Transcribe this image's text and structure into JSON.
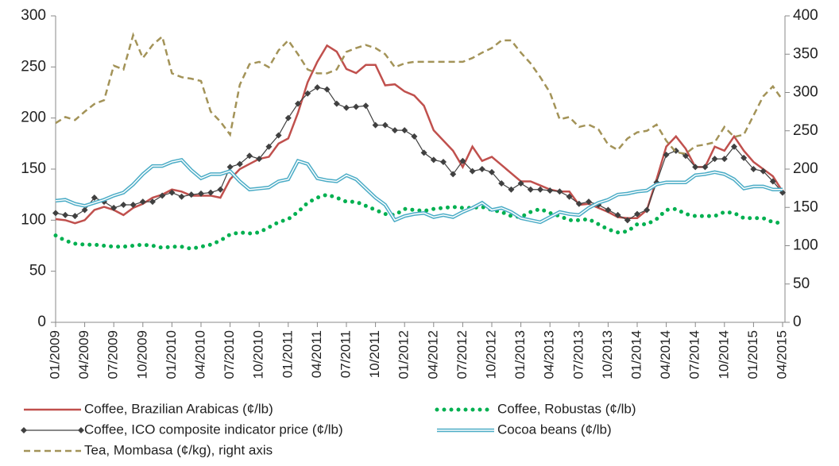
{
  "chart_data": {
    "type": "line",
    "categories": [
      "01/2009",
      null,
      null,
      "04/2009",
      null,
      null,
      "07/2009",
      null,
      null,
      "10/2009",
      null,
      null,
      "01/2010",
      null,
      null,
      "04/2010",
      null,
      null,
      "07/2010",
      null,
      null,
      "10/2010",
      null,
      null,
      "01/2011",
      null,
      null,
      "04/2011",
      null,
      null,
      "07/2011",
      null,
      null,
      "10/2011",
      null,
      null,
      "01/2012",
      null,
      null,
      "04/2012",
      null,
      null,
      "07/2012",
      null,
      null,
      "10/2012",
      null,
      null,
      "01/2013",
      null,
      null,
      "04/2013",
      null,
      null,
      "07/2013",
      null,
      null,
      "10/2013",
      null,
      null,
      "01/2014",
      null,
      null,
      "04/2014",
      null,
      null,
      "07/2014",
      null,
      null,
      "10/2014",
      null,
      null,
      "01/2015",
      null,
      null,
      "04/2015"
    ],
    "ylim": [
      0,
      300
    ],
    "yticks": [
      0,
      50,
      100,
      150,
      200,
      250,
      300
    ],
    "y2lim": [
      0,
      400
    ],
    "y2ticks": [
      0,
      50,
      100,
      150,
      200,
      250,
      300,
      350,
      400
    ],
    "series": [
      {
        "name": "Coffee, Brazilian Arabicas (¢/lb)",
        "color": "#c0504d",
        "style": "solid",
        "values": [
          101,
          100,
          97,
          100,
          110,
          113,
          110,
          105,
          112,
          116,
          122,
          125,
          130,
          128,
          124,
          124,
          124,
          122,
          140,
          150,
          155,
          160,
          162,
          175,
          180,
          205,
          235,
          255,
          271,
          265,
          248,
          244,
          252,
          252,
          232,
          233,
          226,
          222,
          212,
          188,
          178,
          168,
          152,
          172,
          158,
          162,
          154,
          146,
          138,
          138,
          134,
          130,
          128,
          128,
          115,
          116,
          112,
          108,
          103,
          102,
          102,
          110,
          140,
          172,
          182,
          170,
          152,
          152,
          172,
          168,
          182,
          168,
          157,
          150,
          143,
          128
        ]
      },
      {
        "name": "Coffee, Robustas (¢/lb)",
        "color": "#00b050",
        "style": "dotted",
        "values": [
          85,
          80,
          77,
          76,
          76,
          75,
          74,
          74,
          75,
          76,
          75,
          73,
          74,
          74,
          72,
          74,
          76,
          80,
          86,
          88,
          87,
          88,
          93,
          98,
          101,
          108,
          117,
          122,
          125,
          122,
          118,
          118,
          114,
          110,
          106,
          105,
          111,
          110,
          109,
          111,
          112,
          113,
          112,
          112,
          113,
          110,
          108,
          104,
          103,
          108,
          111,
          107,
          104,
          100,
          100,
          101,
          96,
          91,
          88,
          89,
          96,
          96,
          101,
          110,
          111,
          106,
          104,
          104,
          104,
          108,
          107,
          102,
          102,
          102,
          98,
          97
        ]
      },
      {
        "name": "Coffee, ICO composite indicator price (¢/lb)",
        "color": "#404040",
        "style": "markers",
        "values": [
          107,
          105,
          104,
          110,
          122,
          118,
          112,
          115,
          115,
          118,
          118,
          124,
          127,
          123,
          125,
          126,
          127,
          130,
          152,
          155,
          163,
          160,
          172,
          183,
          200,
          214,
          224,
          230,
          228,
          214,
          210,
          211,
          212,
          193,
          193,
          188,
          188,
          182,
          166,
          159,
          157,
          145,
          158,
          148,
          150,
          147,
          136,
          130,
          136,
          130,
          130,
          129,
          128,
          123,
          116,
          118,
          115,
          110,
          105,
          100,
          106,
          110,
          137,
          164,
          168,
          163,
          152,
          152,
          160,
          160,
          172,
          161,
          150,
          148,
          138,
          127
        ]
      },
      {
        "name": "Cocoa beans (¢/lb)",
        "color": "#4bacc6",
        "style": "double",
        "values": [
          119,
          120,
          116,
          114,
          117,
          120,
          124,
          127,
          135,
          145,
          153,
          153,
          157,
          159,
          149,
          141,
          145,
          145,
          148,
          138,
          130,
          131,
          132,
          138,
          140,
          158,
          155,
          141,
          139,
          138,
          144,
          140,
          131,
          122,
          115,
          100,
          104,
          106,
          107,
          103,
          105,
          103,
          108,
          112,
          117,
          110,
          112,
          108,
          102,
          100,
          98,
          103,
          108,
          106,
          105,
          112,
          117,
          120,
          125,
          126,
          128,
          129,
          135,
          137,
          137,
          137,
          144,
          145,
          147,
          145,
          140,
          131,
          133,
          133,
          130,
          130
        ]
      },
      {
        "name": "Tea, Mombasa (¢/kg), right axis",
        "color": "#a39358",
        "style": "dashed",
        "axis": "y2",
        "values": [
          260,
          268,
          264,
          275,
          285,
          290,
          335,
          330,
          375,
          345,
          362,
          373,
          325,
          320,
          318,
          315,
          275,
          262,
          245,
          310,
          337,
          340,
          333,
          355,
          368,
          350,
          330,
          325,
          325,
          330,
          353,
          358,
          362,
          358,
          350,
          333,
          338,
          340,
          340,
          340,
          340,
          340,
          340,
          345,
          352,
          358,
          368,
          368,
          352,
          338,
          320,
          300,
          265,
          268,
          255,
          258,
          252,
          232,
          225,
          240,
          248,
          250,
          258,
          237,
          222,
          220,
          230,
          232,
          235,
          255,
          242,
          245,
          270,
          295,
          308,
          290
        ]
      }
    ]
  }
}
